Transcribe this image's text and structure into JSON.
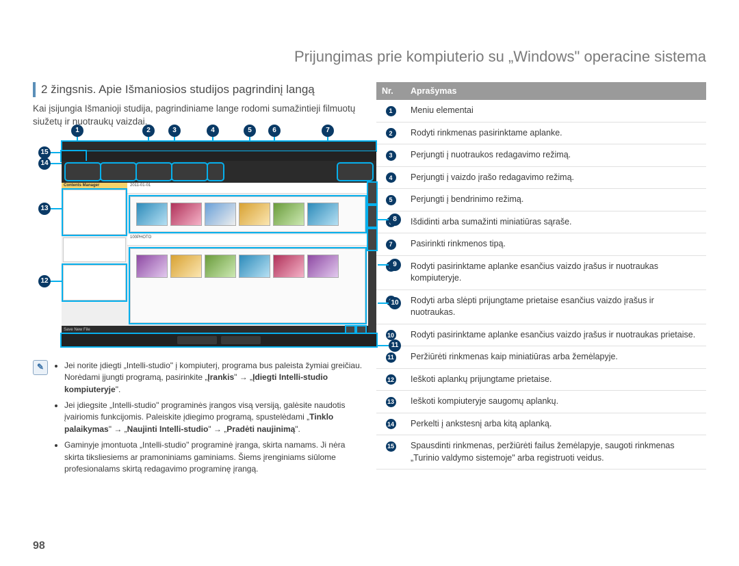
{
  "page_title": "Prijungimas prie kompiuterio su „Windows\" operacine sistema",
  "step_title": "2 žingsnis. Apie Išmaniosios studijos pagrindinį langą",
  "step_body": "Kai įsijungia Išmanioji studija, pagrindiniame lange rodomi sumažintieji filmuotų siužetų ir nuotraukų vaizdai.",
  "note_icon": "✎",
  "notes": {
    "n1_a": "Jei norite įdiegti „Intelli-studio\" į kompiuterį, programa bus paleista žymiai greičiau. Norėdami įjungti programą, pasirinkite „",
    "n1_b_bold": "Įrankis",
    "n1_c": "\" → „",
    "n1_d_bold": "Įdiegti Intelli-studio kompiuteryje",
    "n1_e": "\".",
    "n2_a": "Jei įdiegsite „Intelli-studio\" programinės įrangos visą versiją, galėsite naudotis įvairiomis funkcijomis. Paleiskite įdiegimo programą, spustelėdami „",
    "n2_b_bold": "Tinklo palaikymas",
    "n2_c": "\" → „",
    "n2_d_bold": "Naujinti Intelli-studio",
    "n2_e": "\" → „",
    "n2_f_bold": "Pradėti naujinimą",
    "n2_g": "\".",
    "n3": "Gaminyje įmontuota „Intelli-studio\" programinė įranga, skirta namams. Ji nėra skirta tiksliesiems ar pramoniniams gaminiams. Šiems įrenginiams siūlome profesionalams skirtą redagavimo programinę įrangą."
  },
  "table": {
    "header_nr": "Nr.",
    "header_desc": "Aprašymas",
    "rows": [
      {
        "n": "1",
        "d": "Meniu elementai"
      },
      {
        "n": "2",
        "d": "Rodyti rinkmenas pasirinktame aplanke."
      },
      {
        "n": "3",
        "d": "Perjungti į nuotraukos redagavimo režimą."
      },
      {
        "n": "4",
        "d": "Perjungti į vaizdo įrašo redagavimo režimą."
      },
      {
        "n": "5",
        "d": "Perjungti į bendrinimo režimą."
      },
      {
        "n": "6",
        "d": "Išdidinti arba sumažinti miniatiūras sąraše."
      },
      {
        "n": "7",
        "d": "Pasirinkti rinkmenos tipą."
      },
      {
        "n": "8",
        "d": "Rodyti pasirinktame aplanke esančius vaizdo įrašus ir nuotraukas kompiuteryje."
      },
      {
        "n": "9",
        "d": "Rodyti arba slėpti prijungtame prietaise esančius vaizdo įrašus ir nuotraukas."
      },
      {
        "n": "10",
        "d": "Rodyti pasirinktame aplanke esančius vaizdo įrašus ir nuotraukas prietaise."
      },
      {
        "n": "11",
        "d": "Peržiūrėti rinkmenas kaip miniatiūras arba žemėlapyje."
      },
      {
        "n": "12",
        "d": "Ieškoti aplankų prijungtame prietaise."
      },
      {
        "n": "13",
        "d": "Ieškoti kompiuteryje saugomų aplankų."
      },
      {
        "n": "14",
        "d": "Perkelti į ankstesnį arba kitą aplanką."
      },
      {
        "n": "15",
        "d": "Spausdinti rinkmenas, peržiūrėti failus žemėlapyje, saugoti rinkmenas „Turinio valdymo sistemoje\" arba registruoti veidus."
      }
    ]
  },
  "page_number": "98",
  "callouts_top": [
    "1",
    "2",
    "3",
    "4",
    "5",
    "6",
    "7"
  ],
  "callouts_left": [
    "15",
    "14",
    "13",
    "12"
  ],
  "callouts_right": [
    "8",
    "9",
    "10",
    "11"
  ]
}
